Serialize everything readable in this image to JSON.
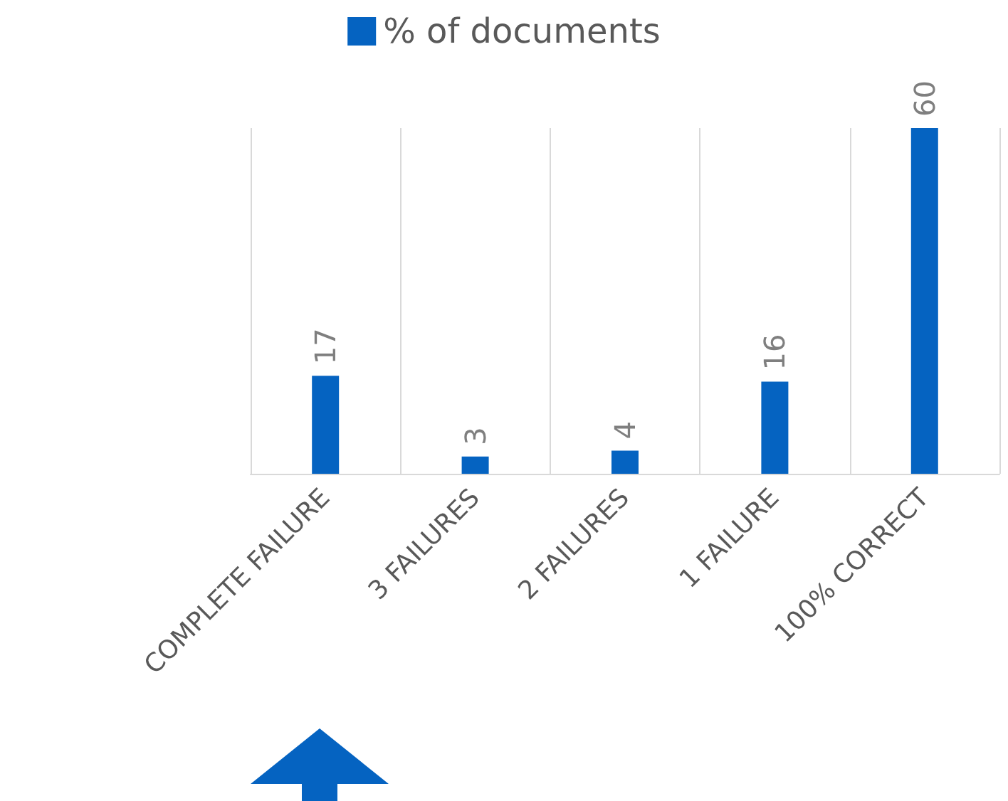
{
  "chart_data": {
    "type": "bar",
    "categories": [
      "COMPLETE FAILURE",
      "3 FAILURES",
      "2 FAILURES",
      "1 FAILURE",
      "100% CORRECT"
    ],
    "series": [
      {
        "name": "% of documents",
        "color": "#0563c1",
        "values": [
          17,
          3,
          4,
          16,
          60
        ]
      }
    ],
    "data_labels": true,
    "grid": "x",
    "legend": "top"
  }
}
